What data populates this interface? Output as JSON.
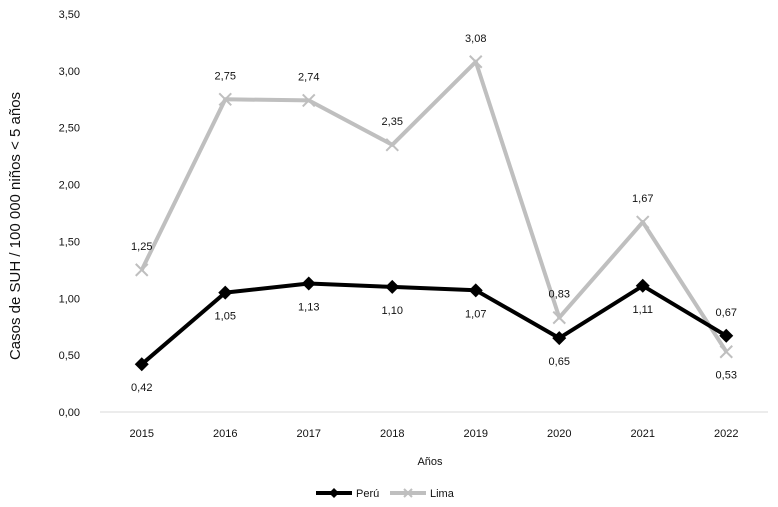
{
  "chart_data": {
    "type": "line",
    "title": "",
    "xlabel": "Años",
    "ylabel": "Casos de SUH / 100 000 niños < 5 años",
    "categories": [
      "2015",
      "2016",
      "2017",
      "2018",
      "2019",
      "2020",
      "2021",
      "2022"
    ],
    "ylim": [
      0,
      3.5
    ],
    "yticks": [
      "0,00",
      "0,50",
      "1,00",
      "1,50",
      "2,00",
      "2,50",
      "3,00",
      "3,50"
    ],
    "grid": false,
    "legend_position": "bottom",
    "series": [
      {
        "name": "Perú",
        "color": "#000000",
        "marker": "diamond",
        "values": [
          0.42,
          1.05,
          1.13,
          1.1,
          1.07,
          0.65,
          1.11,
          0.67
        ],
        "labels": [
          "0,42",
          "1,05",
          "1,13",
          "1,10",
          "1,07",
          "0,65",
          "1,11",
          "0,67"
        ]
      },
      {
        "name": "Lima",
        "color": "#bfbfbf",
        "marker": "x",
        "values": [
          1.25,
          2.75,
          2.74,
          2.35,
          3.08,
          0.83,
          1.67,
          0.53
        ],
        "labels": [
          "1,25",
          "2,75",
          "2,74",
          "2,35",
          "3,08",
          "0,83",
          "1,67",
          "0,53"
        ]
      }
    ]
  }
}
